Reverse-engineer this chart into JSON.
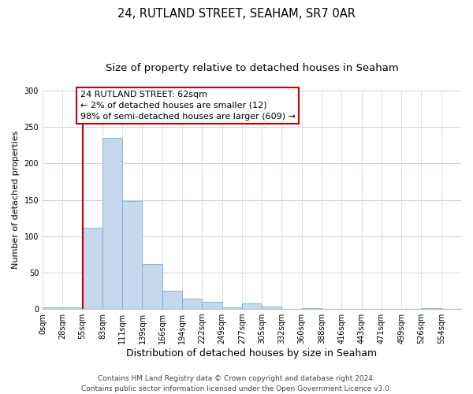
{
  "title": "24, RUTLAND STREET, SEAHAM, SR7 0AR",
  "subtitle": "Size of property relative to detached houses in Seaham",
  "xlabel": "Distribution of detached houses by size in Seaham",
  "ylabel": "Number of detached properties",
  "bin_labels": [
    "0sqm",
    "28sqm",
    "55sqm",
    "83sqm",
    "111sqm",
    "139sqm",
    "166sqm",
    "194sqm",
    "222sqm",
    "249sqm",
    "277sqm",
    "305sqm",
    "332sqm",
    "360sqm",
    "388sqm",
    "416sqm",
    "443sqm",
    "471sqm",
    "499sqm",
    "526sqm",
    "554sqm"
  ],
  "bar_heights": [
    2,
    2,
    112,
    235,
    148,
    62,
    25,
    14,
    10,
    2,
    8,
    3,
    0,
    1,
    0,
    0,
    0,
    0,
    0,
    1,
    0
  ],
  "bar_color": "#c5d8ed",
  "bar_edge_color": "#7aaed4",
  "vertical_line_x": 2,
  "vertical_line_color": "#cc0000",
  "annotation_line1": "24 RUTLAND STREET: 62sqm",
  "annotation_line2": "← 2% of detached houses are smaller (12)",
  "annotation_line3": "98% of semi-detached houses are larger (609) →",
  "annotation_box_edge_color": "#cc0000",
  "ylim": [
    0,
    300
  ],
  "yticks": [
    0,
    50,
    100,
    150,
    200,
    250,
    300
  ],
  "footer_line1": "Contains HM Land Registry data © Crown copyright and database right 2024.",
  "footer_line2": "Contains public sector information licensed under the Open Government Licence v3.0.",
  "title_fontsize": 10.5,
  "subtitle_fontsize": 9.5,
  "xlabel_fontsize": 9,
  "ylabel_fontsize": 8,
  "tick_fontsize": 7,
  "annotation_fontsize": 8,
  "footer_fontsize": 6.5,
  "background_color": "#ffffff",
  "grid_color": "#c8d8e8"
}
